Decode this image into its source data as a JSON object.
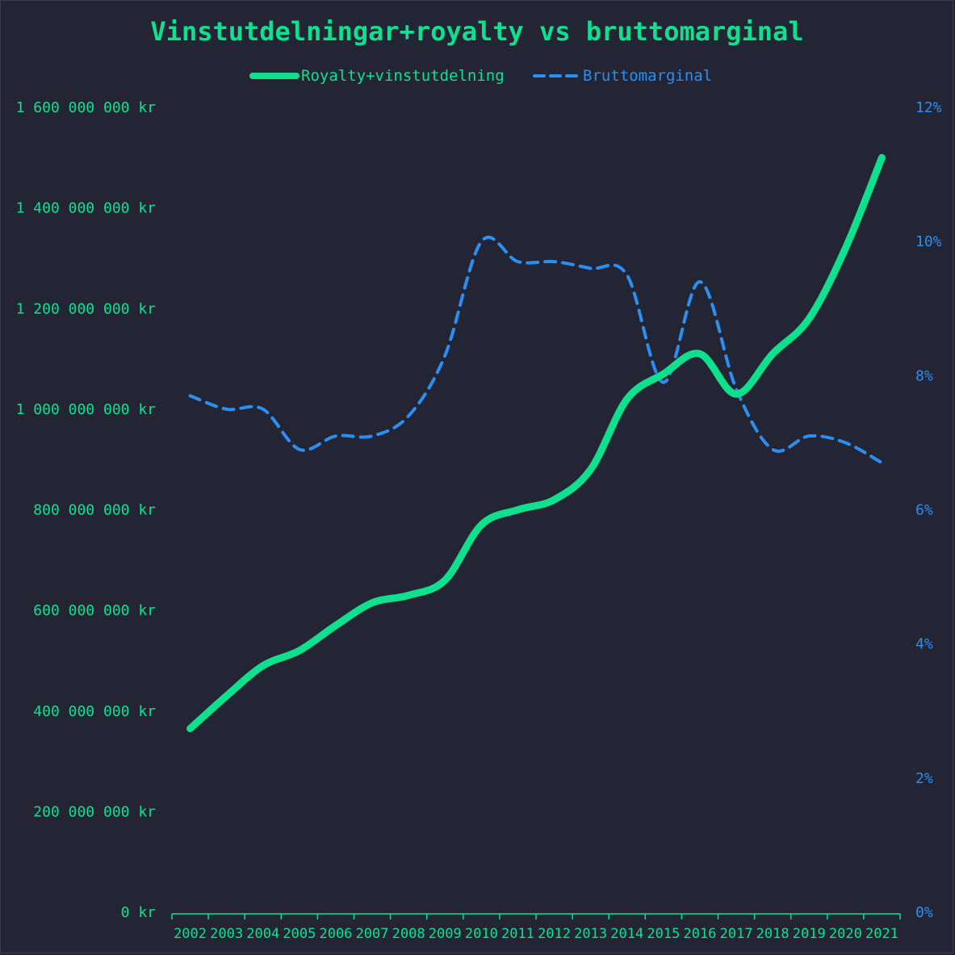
{
  "chart_data": {
    "type": "line",
    "title": "Vinstutdelningar+royalty vs bruttomarginal",
    "categories": [
      "2002",
      "2003",
      "2004",
      "2005",
      "2006",
      "2007",
      "2008",
      "2009",
      "2010",
      "2011",
      "2012",
      "2013",
      "2014",
      "2015",
      "2016",
      "2017",
      "2018",
      "2019",
      "2020",
      "2021"
    ],
    "series": [
      {
        "name": "Royalty+vinstutdelning",
        "axis": "left",
        "style": "solid",
        "color": "#0fe08e",
        "values": [
          365000000,
          430000000,
          490000000,
          520000000,
          570000000,
          615000000,
          630000000,
          660000000,
          770000000,
          800000000,
          820000000,
          880000000,
          1020000000,
          1070000000,
          1110000000,
          1030000000,
          1110000000,
          1180000000,
          1320000000,
          1500000000
        ]
      },
      {
        "name": "Bruttomarginal",
        "axis": "right",
        "style": "dashed",
        "color": "#2a8ff0",
        "values": [
          7.7,
          7.5,
          7.5,
          6.9,
          7.1,
          7.1,
          7.4,
          8.3,
          10.0,
          9.7,
          9.7,
          9.6,
          9.5,
          7.9,
          9.4,
          7.8,
          6.9,
          7.1,
          7.0,
          6.7
        ]
      }
    ],
    "y_left": {
      "min": 0,
      "max": 1600000000,
      "ticks": [
        {
          "value": 0,
          "label": "0 kr"
        },
        {
          "value": 200000000,
          "label": "200 000 000 kr"
        },
        {
          "value": 400000000,
          "label": "400 000 000 kr"
        },
        {
          "value": 600000000,
          "label": "600 000 000 kr"
        },
        {
          "value": 800000000,
          "label": "800 000 000 kr"
        },
        {
          "value": 1000000000,
          "label": "1 000 000 000 kr"
        },
        {
          "value": 1200000000,
          "label": "1 200 000 000 kr"
        },
        {
          "value": 1400000000,
          "label": "1 400 000 000 kr"
        },
        {
          "value": 1600000000,
          "label": "1 600 000 000 kr"
        }
      ]
    },
    "y_right": {
      "min": 0,
      "max": 12,
      "ticks": [
        {
          "value": 0,
          "label": "0%"
        },
        {
          "value": 2,
          "label": "2%"
        },
        {
          "value": 4,
          "label": "4%"
        },
        {
          "value": 6,
          "label": "6%"
        },
        {
          "value": 8,
          "label": "8%"
        },
        {
          "value": 10,
          "label": "10%"
        },
        {
          "value": 12,
          "label": "12%"
        }
      ]
    },
    "grid": false,
    "legend_position": "top-center",
    "colors": {
      "background": "#232434",
      "title": "#0fe08e",
      "left_axis": "#0fe08e",
      "right_axis": "#2a8ff0",
      "x_axis": "#0fe08e"
    }
  }
}
